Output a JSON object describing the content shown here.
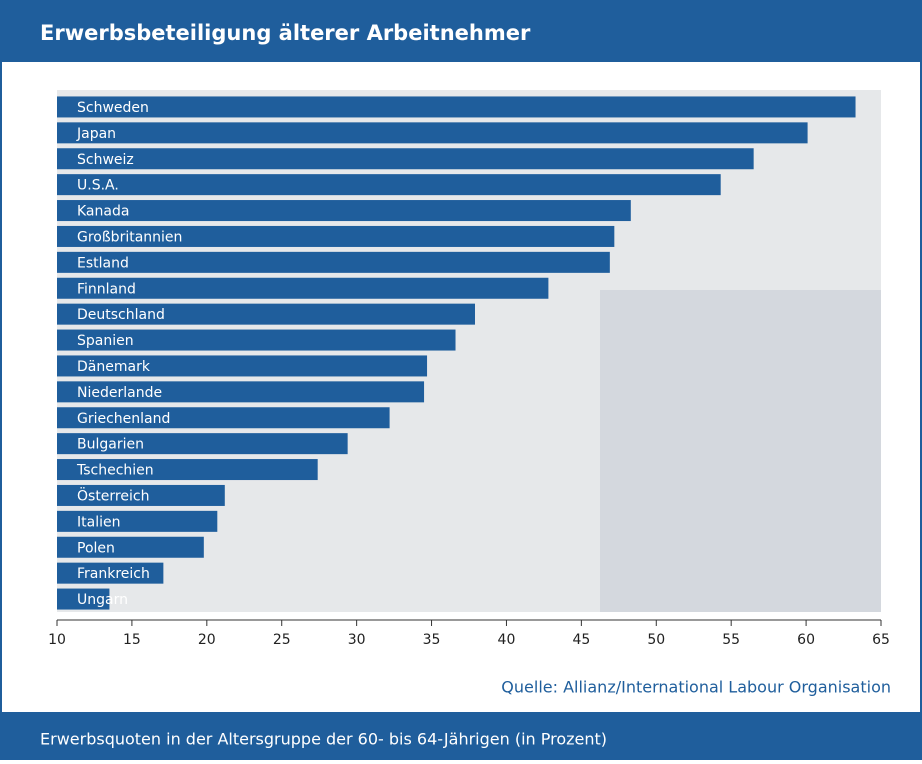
{
  "chart_data": {
    "type": "barh",
    "title": "Erwerbsbeteiligung älterer Arbeitnehmer",
    "caption": "Erwerbsquoten in der Altersgruppe der 60- bis 64-Jährigen (in Prozent)",
    "source": "Quelle: Allianz/International Labour Organisation",
    "categories": [
      "Schweden",
      "Japan",
      "Schweiz",
      "U.S.A.",
      "Kanada",
      "Großbritannien",
      "Estland",
      "Finnland",
      "Deutschland",
      "Spanien",
      "Dänemark",
      "Niederlande",
      "Griechenland",
      "Bulgarien",
      "Tschechien",
      "Österreich",
      "Italien",
      "Polen",
      "Frankreich",
      "Ungarn"
    ],
    "values": [
      63.3,
      60.1,
      56.5,
      54.3,
      48.3,
      47.2,
      46.9,
      42.8,
      37.9,
      36.6,
      34.7,
      34.5,
      32.2,
      29.4,
      27.4,
      21.2,
      20.7,
      19.8,
      17.1,
      13.5
    ],
    "color": "#1f5e9c",
    "xlim": [
      10,
      65
    ],
    "xticks": [
      10,
      15,
      20,
      25,
      30,
      35,
      40,
      45,
      50,
      55,
      60,
      65
    ]
  }
}
